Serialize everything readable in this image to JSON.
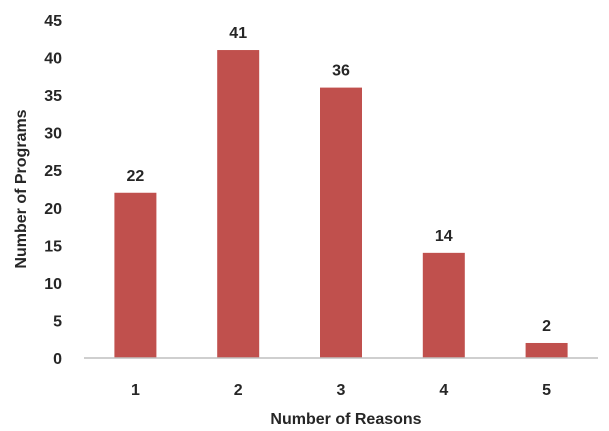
{
  "chart_data": {
    "type": "bar",
    "categories": [
      "1",
      "2",
      "3",
      "4",
      "5"
    ],
    "values": [
      22,
      41,
      36,
      14,
      2
    ],
    "data_labels": [
      "22",
      "41",
      "36",
      "14",
      "2"
    ],
    "title": "",
    "xlabel": "Number of Reasons",
    "ylabel": "Number of Programs",
    "ylim": [
      0,
      45
    ],
    "yticks": [
      0,
      5,
      10,
      15,
      20,
      25,
      30,
      35,
      40,
      45
    ],
    "grid": false,
    "legend": "none",
    "colors": {
      "bar": "#c0504d",
      "axis": "#bfbfbf",
      "text": "#262626"
    }
  }
}
